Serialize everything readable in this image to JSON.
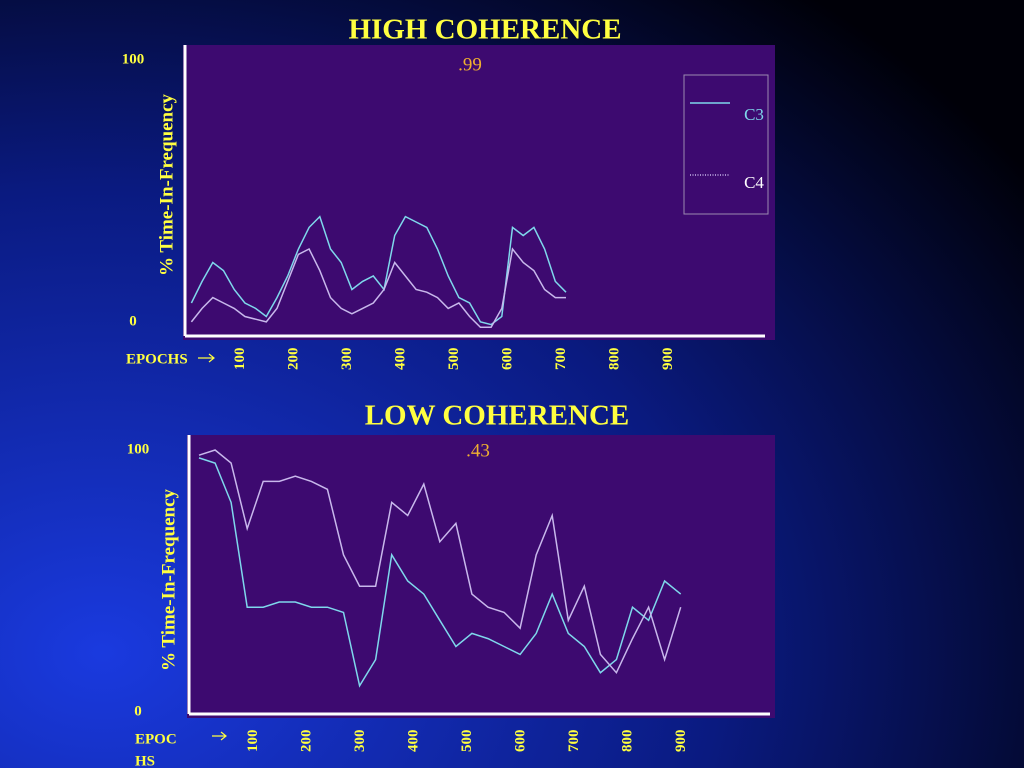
{
  "chart_data": [
    {
      "type": "line",
      "title": "HIGH COHERENCE",
      "annotation": ".99",
      "y_label": "% Time-In-Frequency",
      "x_label": [
        "EPOCHS"
      ],
      "xlim": [
        0,
        1080
      ],
      "xticks": [
        100,
        200,
        300,
        400,
        500,
        600,
        700,
        800,
        900
      ],
      "ylim": [
        0,
        100
      ],
      "yticks": [
        0,
        100
      ],
      "grid": false,
      "legend": "upper right",
      "x": [
        10,
        30,
        50,
        70,
        90,
        110,
        130,
        150,
        170,
        190,
        210,
        230,
        250,
        270,
        290,
        310,
        330,
        350,
        370,
        390,
        410,
        430,
        450,
        470,
        490,
        510,
        530,
        550,
        570,
        590,
        610,
        630,
        650,
        670,
        690,
        710
      ],
      "series": [
        {
          "name": "C3",
          "color": "#7fd8ec",
          "values": [
            10,
            18,
            25,
            22,
            15,
            10,
            8,
            5,
            12,
            20,
            30,
            38,
            42,
            30,
            25,
            15,
            18,
            20,
            15,
            35,
            42,
            40,
            38,
            30,
            20,
            12,
            10,
            3,
            2,
            5,
            38,
            35,
            38,
            30,
            18,
            14
          ]
        },
        {
          "name": "C4",
          "color": "#c8b8ec",
          "values": [
            3,
            8,
            12,
            10,
            8,
            5,
            4,
            3,
            8,
            18,
            28,
            30,
            22,
            12,
            8,
            6,
            8,
            10,
            15,
            25,
            20,
            15,
            14,
            12,
            8,
            10,
            5,
            1,
            1,
            8,
            30,
            25,
            22,
            15,
            12,
            12
          ]
        }
      ]
    },
    {
      "type": "line",
      "title": "LOW COHERENCE",
      "annotation": ".43",
      "y_label": "% Time-In-Frequency",
      "x_label": [
        "EPOC",
        "HS"
      ],
      "xlim": [
        0,
        1080
      ],
      "xticks": [
        100,
        200,
        300,
        400,
        500,
        600,
        700,
        800,
        900
      ],
      "ylim": [
        0,
        100
      ],
      "yticks": [
        0,
        100
      ],
      "grid": false,
      "x": [
        0,
        30,
        60,
        90,
        120,
        150,
        180,
        210,
        240,
        270,
        300,
        330,
        360,
        390,
        420,
        450,
        480,
        510,
        540,
        570,
        600,
        630,
        660,
        690,
        720,
        750,
        780,
        810,
        840,
        870,
        900
      ],
      "series": [
        {
          "color": "#7fd8ec",
          "values": [
            97,
            95,
            80,
            40,
            40,
            42,
            42,
            40,
            40,
            38,
            10,
            20,
            60,
            50,
            45,
            35,
            25,
            30,
            28,
            25,
            22,
            30,
            45,
            30,
            25,
            15,
            20,
            40,
            35,
            50,
            45
          ]
        },
        {
          "color": "#c8b8ec",
          "values": [
            98,
            100,
            95,
            70,
            88,
            88,
            90,
            88,
            85,
            60,
            48,
            48,
            80,
            75,
            87,
            65,
            72,
            45,
            40,
            38,
            32,
            60,
            75,
            35,
            48,
            22,
            15,
            28,
            40,
            20,
            40
          ]
        }
      ]
    }
  ]
}
